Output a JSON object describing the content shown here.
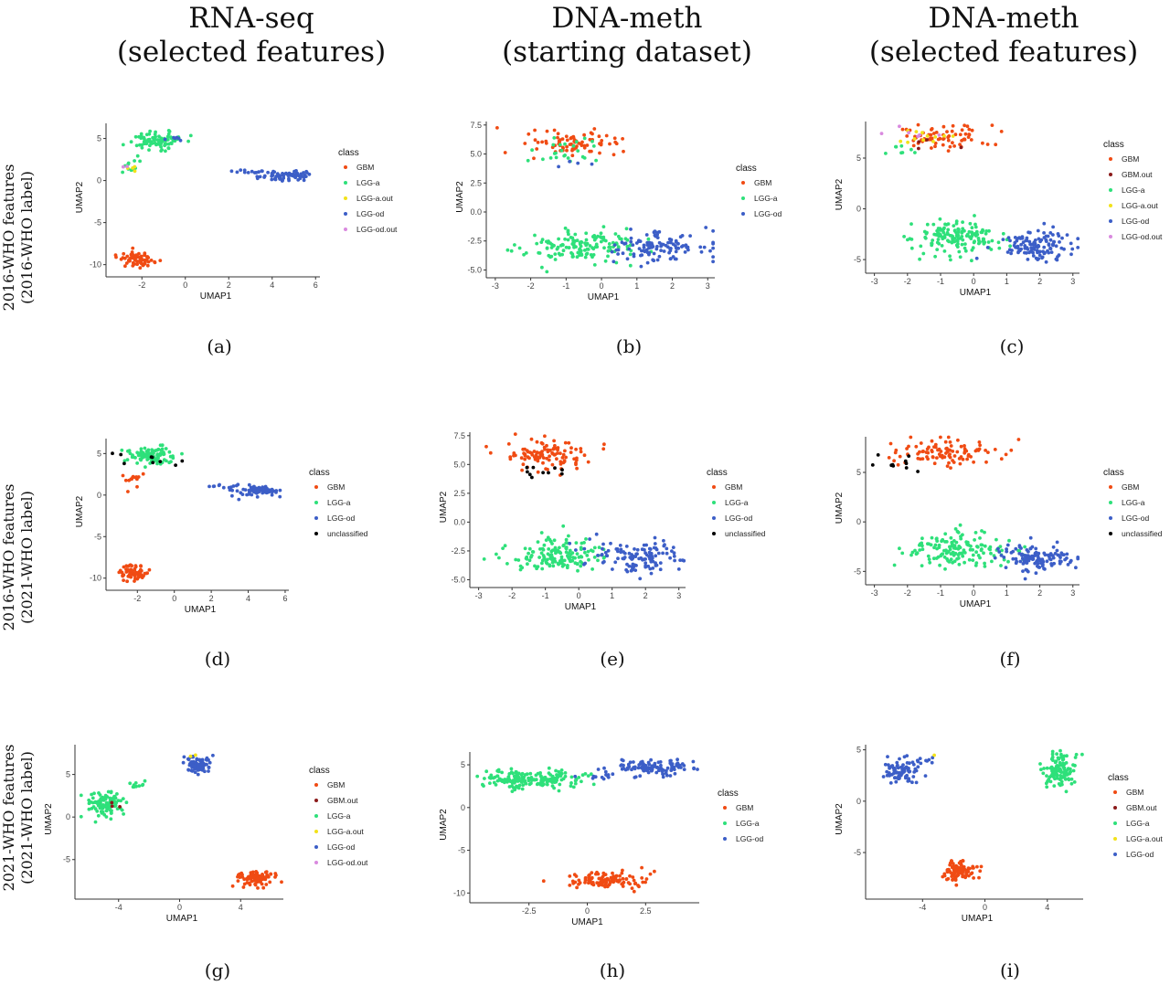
{
  "column_headers": [
    {
      "line1": "RNA-seq",
      "line2": "(selected features)"
    },
    {
      "line1": "DNA-meth",
      "line2": "(starting dataset)"
    },
    {
      "line1": "DNA-meth",
      "line2": "(selected features)"
    }
  ],
  "row_headers": [
    {
      "line1": "2016-WHO features",
      "line2": "(2016-WHO label)"
    },
    {
      "line1": "2016-WHO features",
      "line2": "(2021-WHO label)"
    },
    {
      "line1": "2021-WHO features",
      "line2": "(2021-WHO label)"
    }
  ],
  "captions": [
    "(a)",
    "(b)",
    "(c)",
    "(d)",
    "(e)",
    "(f)",
    "(g)",
    "(h)",
    "(i)"
  ],
  "class_colors": {
    "GBM": "#f04b13",
    "GBM.out": "#8b1a1a",
    "LGG-a": "#2ee07a",
    "LGG-a.out": "#f2e21a",
    "LGG-od": "#3c5ec7",
    "LGG-od.out": "#d98adf",
    "unclassified": "#000000"
  },
  "chart_data": [
    {
      "id": "a",
      "type": "scatter",
      "xlabel": "UMAP1",
      "ylabel": "UMAP2",
      "xlim": [
        -3.4,
        6.2
      ],
      "ylim": [
        -10.8,
        6.8
      ],
      "xticks": [
        -2,
        0,
        2,
        4,
        6
      ],
      "yticks": [
        -10,
        -5,
        0,
        5
      ],
      "legend_title": "class",
      "legend": [
        "GBM",
        "LGG-a",
        "LGG-a.out",
        "LGG-od",
        "LGG-od.out"
      ],
      "clusters": [
        {
          "class": "GBM",
          "cx": -2.2,
          "cy": -9.4,
          "sx": 0.4,
          "sy": 0.45,
          "n": 70
        },
        {
          "class": "LGG-a",
          "cx": -1.3,
          "cy": 4.8,
          "sx": 0.7,
          "sy": 0.5,
          "n": 90
        },
        {
          "class": "LGG-a",
          "cx": -2.5,
          "cy": 2.0,
          "sx": 0.3,
          "sy": 0.6,
          "n": 12
        },
        {
          "class": "LGG-a.out",
          "cx": -2.5,
          "cy": 1.4,
          "sx": 0.2,
          "sy": 0.3,
          "n": 4
        },
        {
          "class": "LGG-od",
          "cx": 4.7,
          "cy": 0.6,
          "sx": 0.6,
          "sy": 0.35,
          "n": 70
        },
        {
          "class": "LGG-od",
          "cx": 2.8,
          "cy": 1.1,
          "sx": 0.5,
          "sy": 0.1,
          "n": 10
        },
        {
          "class": "LGG-od",
          "cx": -0.4,
          "cy": 5.0,
          "sx": 0.3,
          "sy": 0.3,
          "n": 6
        },
        {
          "class": "LGG-od.out",
          "cx": -2.7,
          "cy": 1.3,
          "sx": 0.1,
          "sy": 0.2,
          "n": 2
        }
      ]
    },
    {
      "id": "b",
      "type": "scatter",
      "xlabel": "UMAP1",
      "ylabel": "UMAP2",
      "xlim": [
        -3.1,
        3.2
      ],
      "ylim": [
        -5.2,
        7.8
      ],
      "xticks": [
        -3,
        -2,
        -1,
        0,
        1,
        2,
        3
      ],
      "yticks": [
        -5.0,
        -2.5,
        0.0,
        2.5,
        5.0,
        7.5
      ],
      "legend_title": "class",
      "legend": [
        "GBM",
        "LGG-a",
        "LGG-od"
      ],
      "clusters": [
        {
          "class": "GBM",
          "cx": -1.0,
          "cy": 5.8,
          "sx": 0.7,
          "sy": 0.55,
          "n": 80
        },
        {
          "class": "LGG-a",
          "cx": -0.8,
          "cy": 5.2,
          "sx": 0.6,
          "sy": 0.6,
          "n": 25
        },
        {
          "class": "LGG-od",
          "cx": -1.0,
          "cy": 4.2,
          "sx": 0.3,
          "sy": 0.3,
          "n": 4
        },
        {
          "class": "LGG-a",
          "cx": -0.6,
          "cy": -2.9,
          "sx": 0.75,
          "sy": 0.75,
          "n": 150
        },
        {
          "class": "LGG-od",
          "cx": 1.7,
          "cy": -3.0,
          "sx": 0.7,
          "sy": 0.65,
          "n": 120
        }
      ]
    },
    {
      "id": "c",
      "type": "scatter",
      "xlabel": "UMAP1",
      "ylabel": "UMAP2",
      "xlim": [
        -3.1,
        3.2
      ],
      "ylim": [
        -5.8,
        8.6
      ],
      "xticks": [
        -3,
        -2,
        -1,
        0,
        1,
        2,
        3
      ],
      "yticks": [
        -5,
        0,
        5
      ],
      "legend_title": "class",
      "legend": [
        "GBM",
        "GBM.out",
        "LGG-a",
        "LGG-a.out",
        "LGG-od",
        "LGG-od.out"
      ],
      "clusters": [
        {
          "class": "GBM",
          "cx": -0.9,
          "cy": 7.1,
          "sx": 0.7,
          "sy": 0.6,
          "n": 70
        },
        {
          "class": "GBM.out",
          "cx": -1.2,
          "cy": 6.5,
          "sx": 0.5,
          "sy": 0.4,
          "n": 4
        },
        {
          "class": "LGG-a.out",
          "cx": -1.5,
          "cy": 6.9,
          "sx": 0.5,
          "sy": 0.5,
          "n": 12
        },
        {
          "class": "LGG-od.out",
          "cx": -1.8,
          "cy": 7.4,
          "sx": 0.4,
          "sy": 0.4,
          "n": 6
        },
        {
          "class": "LGG-a",
          "cx": -2.5,
          "cy": 5.6,
          "sx": 0.3,
          "sy": 0.4,
          "n": 8
        },
        {
          "class": "LGG-a",
          "cx": -0.5,
          "cy": -2.8,
          "sx": 0.7,
          "sy": 0.85,
          "n": 150
        },
        {
          "class": "LGG-od",
          "cx": 1.9,
          "cy": -3.7,
          "sx": 0.6,
          "sy": 0.75,
          "n": 120
        }
      ]
    },
    {
      "id": "d",
      "type": "scatter",
      "xlabel": "UMAP1",
      "ylabel": "UMAP2",
      "xlim": [
        -3.4,
        6.2
      ],
      "ylim": [
        -10.8,
        6.8
      ],
      "xticks": [
        -2,
        0,
        2,
        4,
        6
      ],
      "yticks": [
        -10,
        -5,
        0,
        5
      ],
      "legend_title": "class",
      "legend": [
        "GBM",
        "LGG-a",
        "LGG-od",
        "unclassified"
      ],
      "clusters": [
        {
          "class": "GBM",
          "cx": -2.2,
          "cy": -9.4,
          "sx": 0.4,
          "sy": 0.45,
          "n": 70
        },
        {
          "class": "GBM",
          "cx": -2.3,
          "cy": 2.0,
          "sx": 0.3,
          "sy": 0.6,
          "n": 14
        },
        {
          "class": "LGG-a",
          "cx": -1.3,
          "cy": 4.8,
          "sx": 0.7,
          "sy": 0.5,
          "n": 95
        },
        {
          "class": "LGG-od",
          "cx": 4.7,
          "cy": 0.6,
          "sx": 0.6,
          "sy": 0.35,
          "n": 70
        },
        {
          "class": "LGG-od",
          "cx": 2.8,
          "cy": 1.1,
          "sx": 0.5,
          "sy": 0.1,
          "n": 10
        },
        {
          "class": "unclassified",
          "cx": -1.5,
          "cy": 4.5,
          "sx": 0.9,
          "sy": 0.6,
          "n": 9
        }
      ]
    },
    {
      "id": "e",
      "type": "scatter",
      "xlabel": "UMAP1",
      "ylabel": "UMAP2",
      "xlim": [
        -3.1,
        3.2
      ],
      "ylim": [
        -5.2,
        7.8
      ],
      "xticks": [
        -3,
        -2,
        -1,
        0,
        1,
        2,
        3
      ],
      "yticks": [
        -5.0,
        -2.5,
        0.0,
        2.5,
        5.0,
        7.5
      ],
      "legend_title": "class",
      "legend": [
        "GBM",
        "LGG-a",
        "LGG-od",
        "unclassified"
      ],
      "clusters": [
        {
          "class": "GBM",
          "cx": -0.9,
          "cy": 5.8,
          "sx": 0.7,
          "sy": 0.6,
          "n": 110
        },
        {
          "class": "unclassified",
          "cx": -1.1,
          "cy": 4.2,
          "sx": 0.4,
          "sy": 0.3,
          "n": 10
        },
        {
          "class": "LGG-a",
          "cx": -0.6,
          "cy": -2.9,
          "sx": 0.75,
          "sy": 0.75,
          "n": 150
        },
        {
          "class": "LGG-od",
          "cx": 1.7,
          "cy": -3.0,
          "sx": 0.7,
          "sy": 0.65,
          "n": 120
        }
      ]
    },
    {
      "id": "f",
      "type": "scatter",
      "xlabel": "UMAP1",
      "ylabel": "UMAP2",
      "xlim": [
        -3.1,
        3.2
      ],
      "ylim": [
        -5.8,
        8.6
      ],
      "xticks": [
        -3,
        -2,
        -1,
        0,
        1,
        2,
        3
      ],
      "yticks": [
        -5,
        0,
        5
      ],
      "legend_title": "class",
      "legend": [
        "GBM",
        "LGG-a",
        "LGG-od",
        "unclassified"
      ],
      "clusters": [
        {
          "class": "GBM",
          "cx": -1.0,
          "cy": 7.0,
          "sx": 0.8,
          "sy": 0.65,
          "n": 100
        },
        {
          "class": "unclassified",
          "cx": -2.4,
          "cy": 5.8,
          "sx": 0.4,
          "sy": 0.5,
          "n": 10
        },
        {
          "class": "LGG-a",
          "cx": -0.5,
          "cy": -2.8,
          "sx": 0.7,
          "sy": 0.85,
          "n": 150
        },
        {
          "class": "LGG-od",
          "cx": 1.9,
          "cy": -3.7,
          "sx": 0.6,
          "sy": 0.75,
          "n": 120
        }
      ]
    },
    {
      "id": "g",
      "type": "scatter",
      "xlabel": "UMAP1",
      "ylabel": "UMAP2",
      "xlim": [
        -6.5,
        6.8
      ],
      "ylim": [
        -9.0,
        8.5
      ],
      "xticks": [
        -4,
        0,
        4
      ],
      "yticks": [
        -5,
        0,
        5
      ],
      "legend_title": "class",
      "legend": [
        "GBM",
        "GBM.out",
        "LGG-a",
        "LGG-a.out",
        "LGG-od",
        "LGG-od.out"
      ],
      "clusters": [
        {
          "class": "LGG-a",
          "cx": -4.9,
          "cy": 1.5,
          "sx": 0.6,
          "sy": 0.8,
          "n": 110
        },
        {
          "class": "LGG-a",
          "cx": -3.0,
          "cy": 3.8,
          "sx": 0.4,
          "sy": 0.25,
          "n": 10
        },
        {
          "class": "GBM.out",
          "cx": -4.5,
          "cy": 1.0,
          "sx": 0.7,
          "sy": 0.7,
          "n": 3
        },
        {
          "class": "LGG-od",
          "cx": 1.1,
          "cy": 6.2,
          "sx": 0.45,
          "sy": 0.5,
          "n": 80
        },
        {
          "class": "LGG-a.out",
          "cx": 0.9,
          "cy": 7.3,
          "sx": 0.2,
          "sy": 0.1,
          "n": 2
        },
        {
          "class": "GBM",
          "cx": 5.0,
          "cy": -7.2,
          "sx": 0.6,
          "sy": 0.4,
          "n": 90
        }
      ]
    },
    {
      "id": "h",
      "type": "scatter",
      "xlabel": "UMAP1",
      "ylabel": "UMAP2",
      "xlim": [
        -4.8,
        4.8
      ],
      "ylim": [
        -10.5,
        6.5
      ],
      "xticks": [
        -2.5,
        0.0,
        2.5
      ],
      "yticks": [
        -10,
        -5,
        0,
        5
      ],
      "legend_title": "class",
      "legend": [
        "GBM",
        "LGG-a",
        "LGG-od"
      ],
      "clusters": [
        {
          "class": "LGG-a",
          "cx": -2.5,
          "cy": 3.3,
          "sx": 1.1,
          "sy": 0.5,
          "n": 180
        },
        {
          "class": "LGG-od",
          "cx": 2.8,
          "cy": 4.6,
          "sx": 0.9,
          "sy": 0.5,
          "n": 110
        },
        {
          "class": "LGG-od",
          "cx": 0.4,
          "cy": 3.6,
          "sx": 0.4,
          "sy": 0.15,
          "n": 10
        },
        {
          "class": "GBM",
          "cx": 0.8,
          "cy": -8.5,
          "sx": 0.8,
          "sy": 0.5,
          "n": 110
        }
      ]
    },
    {
      "id": "i",
      "type": "scatter",
      "xlabel": "UMAP1",
      "ylabel": "UMAP2",
      "xlim": [
        -7.3,
        6.3
      ],
      "ylim": [
        -9.0,
        5.5
      ],
      "xticks": [
        -4,
        0,
        4
      ],
      "yticks": [
        -5,
        0,
        5
      ],
      "legend_title": "class",
      "legend": [
        "GBM",
        "GBM.out",
        "LGG-a",
        "LGG-a.out",
        "LGG-od"
      ],
      "clusters": [
        {
          "class": "LGG-od",
          "cx": -5.3,
          "cy": 2.8,
          "sx": 0.7,
          "sy": 0.6,
          "n": 80
        },
        {
          "class": "LGG-od",
          "cx": -3.9,
          "cy": 4.0,
          "sx": 0.4,
          "sy": 0.2,
          "n": 10
        },
        {
          "class": "LGG-a.out",
          "cx": -3.2,
          "cy": 4.3,
          "sx": 0.1,
          "sy": 0.1,
          "n": 1
        },
        {
          "class": "LGG-a",
          "cx": 4.8,
          "cy": 3.0,
          "sx": 0.5,
          "sy": 0.75,
          "n": 120
        },
        {
          "class": "GBM",
          "cx": -1.5,
          "cy": -6.8,
          "sx": 0.5,
          "sy": 0.55,
          "n": 110
        }
      ]
    }
  ]
}
